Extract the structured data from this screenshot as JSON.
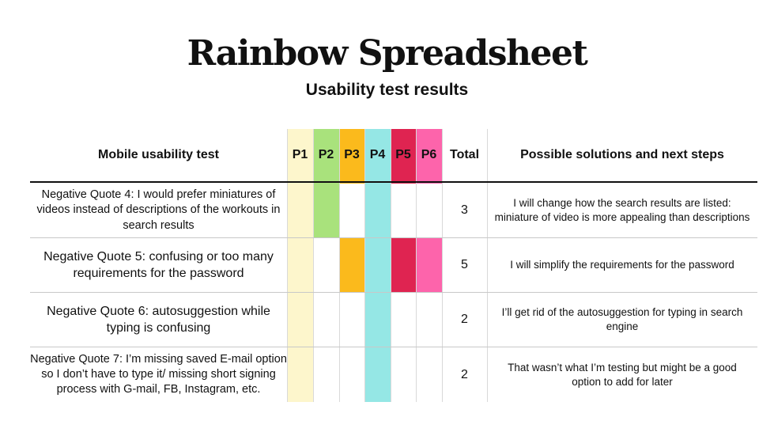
{
  "title": "Rainbow Spreadsheet",
  "subtitle": "Usability test results",
  "headers": {
    "test": "Mobile usability test",
    "participants": [
      "P1",
      "P2",
      "P3",
      "P4",
      "P5",
      "P6"
    ],
    "total": "Total",
    "solutions": "Possible solutions and next steps"
  },
  "participant_colors": [
    "#fdf6cc",
    "#a9e27c",
    "#fbba1c",
    "#95e7e5",
    "#df2451",
    "#fd64ab"
  ],
  "rows": [
    {
      "quote": "Negative Quote 4: I would prefer miniatures of videos instead of descriptions of the workouts in search results",
      "marks": [
        true,
        true,
        false,
        true,
        false,
        false
      ],
      "total": "3",
      "solution": "I will change how the search results are listed: miniature of video is more appealing than descriptions"
    },
    {
      "quote": "Negative Quote 5: confusing or too many requirements for the password",
      "marks": [
        true,
        false,
        true,
        true,
        true,
        true
      ],
      "total": "5",
      "solution": "I will simplify the requirements for the password"
    },
    {
      "quote": "Negative Quote 6: autosuggestion while typing is confusing",
      "marks": [
        true,
        false,
        false,
        true,
        false,
        false
      ],
      "total": "2",
      "solution": "I’ll get rid of the autosuggestion for typing in search engine"
    },
    {
      "quote": "Negative Quote 7: I’m missing saved E-mail option so I don’t have to type it/ missing short signing process with G-mail, FB, Instagram, etc.",
      "marks": [
        true,
        false,
        false,
        true,
        false,
        false
      ],
      "total": "2",
      "solution": "That wasn’t what I’m testing but might be a good option to add for later"
    }
  ]
}
